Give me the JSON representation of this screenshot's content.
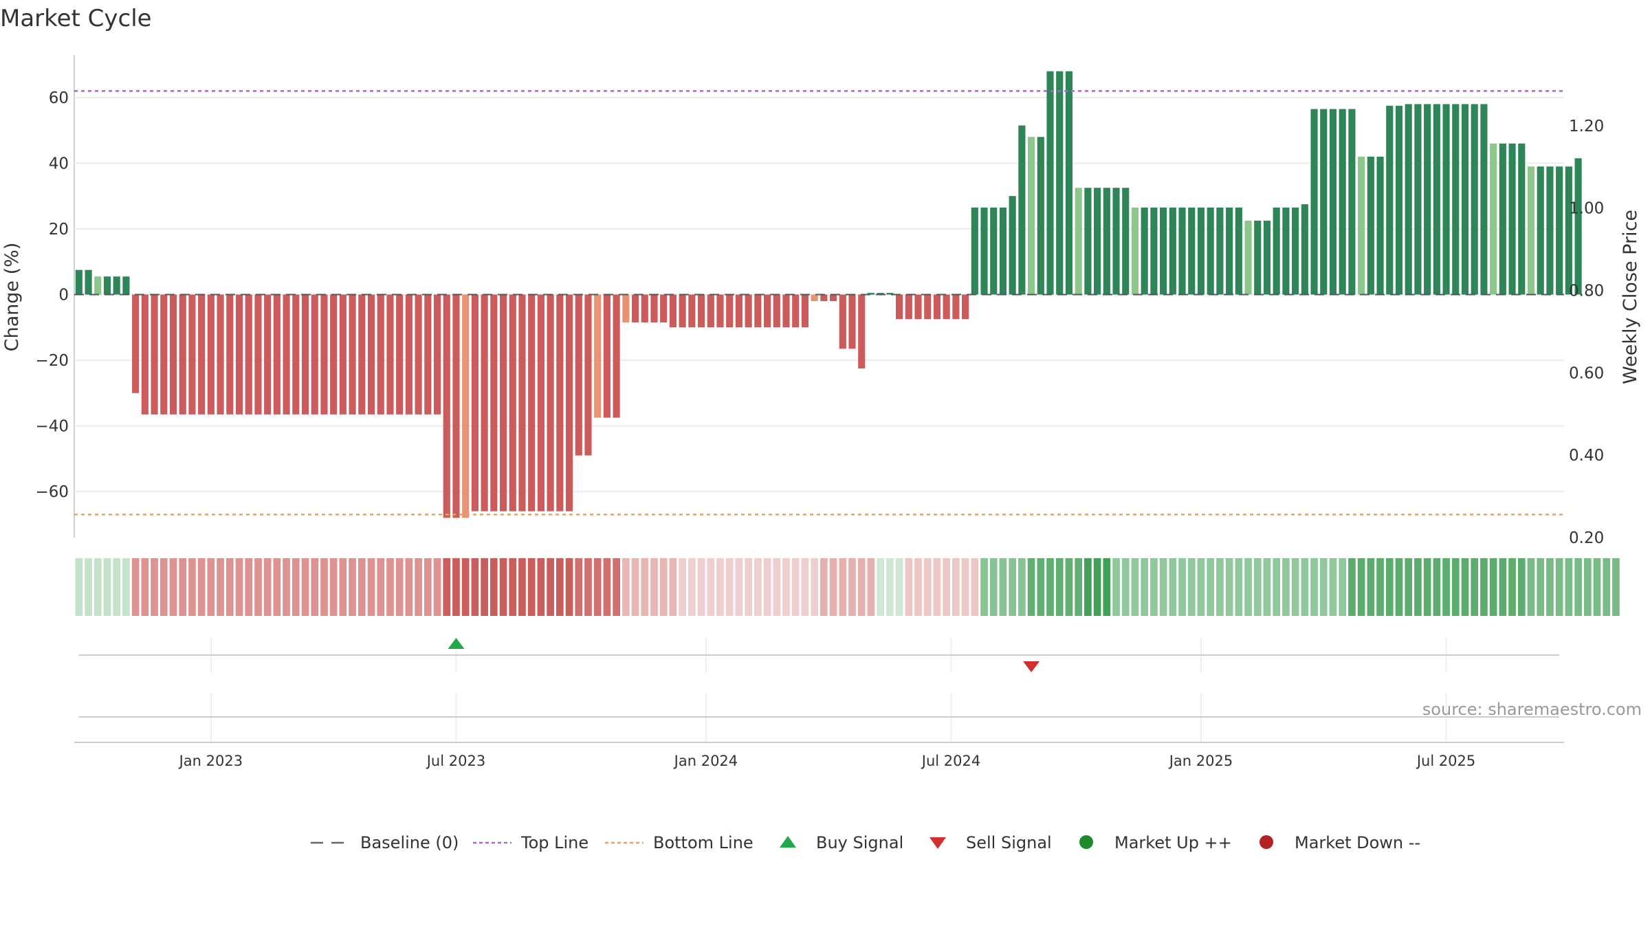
{
  "title": "Market Cycle",
  "source": "source: sharemaestro.com",
  "colors": {
    "up_strong": "#2e8658",
    "up_light": "#8dc68a",
    "down_strong": "#cb5c5b",
    "down_light": "#e89473",
    "top_line": "#a865d8",
    "bottom_line": "#e8a45c",
    "buy": "#22a84a",
    "sell": "#d12e2e",
    "market_up": "#1f8a2a",
    "market_down": "#b22222"
  },
  "chart_data": {
    "type": "bar",
    "ylabel": "Change (%)",
    "y2label": "Weekly Close Price",
    "ylim": [
      -74,
      74
    ],
    "y_ticks": [
      60,
      40,
      20,
      0,
      -20,
      -40,
      -60
    ],
    "y_tick_labels": [
      "60",
      "40",
      "20",
      "0",
      "−20",
      "−40",
      "−60"
    ],
    "y2lim": [
      0.2,
      1.38
    ],
    "y2_ticks": [
      1.2,
      1.0,
      0.8,
      0.6,
      0.4,
      0.2
    ],
    "y2_tick_labels": [
      "1.20",
      "1.00",
      "0.80",
      "0.60",
      "0.40",
      "0.20"
    ],
    "top_line": 62,
    "bottom_line": -67,
    "x_ticks": [
      "Jan 2023",
      "Jul 2023",
      "Jan 2024",
      "Jul 2024",
      "Jan 2025",
      "Jul 2025"
    ],
    "x_tick_weeks": [
      14.5,
      40.5,
      67,
      93,
      119.5,
      145.5
    ],
    "weeks": 158,
    "bars": [
      [
        7.5,
        "s"
      ],
      [
        7.5,
        "s"
      ],
      [
        5.5,
        "l"
      ],
      [
        5.5,
        "s"
      ],
      [
        5.5,
        "s"
      ],
      [
        5.5,
        "s"
      ],
      [
        -30,
        "s"
      ],
      [
        -36.5,
        "s"
      ],
      [
        -36.5,
        "s"
      ],
      [
        -36.5,
        "s"
      ],
      [
        -36.5,
        "s"
      ],
      [
        -36.5,
        "s"
      ],
      [
        -36.5,
        "s"
      ],
      [
        -36.5,
        "s"
      ],
      [
        -36.5,
        "s"
      ],
      [
        -36.5,
        "s"
      ],
      [
        -36.5,
        "s"
      ],
      [
        -36.5,
        "s"
      ],
      [
        -36.5,
        "s"
      ],
      [
        -36.5,
        "s"
      ],
      [
        -36.5,
        "s"
      ],
      [
        -36.5,
        "s"
      ],
      [
        -36.5,
        "s"
      ],
      [
        -36.5,
        "s"
      ],
      [
        -36.5,
        "s"
      ],
      [
        -36.5,
        "s"
      ],
      [
        -36.5,
        "s"
      ],
      [
        -36.5,
        "s"
      ],
      [
        -36.5,
        "s"
      ],
      [
        -36.5,
        "s"
      ],
      [
        -36.5,
        "s"
      ],
      [
        -36.5,
        "s"
      ],
      [
        -36.5,
        "s"
      ],
      [
        -36.5,
        "s"
      ],
      [
        -36.5,
        "s"
      ],
      [
        -36.5,
        "s"
      ],
      [
        -36.5,
        "s"
      ],
      [
        -36.5,
        "s"
      ],
      [
        -36.5,
        "s"
      ],
      [
        -68,
        "s"
      ],
      [
        -68,
        "s"
      ],
      [
        -68,
        "l"
      ],
      [
        -66,
        "s"
      ],
      [
        -66,
        "s"
      ],
      [
        -66,
        "s"
      ],
      [
        -66,
        "s"
      ],
      [
        -66,
        "s"
      ],
      [
        -66,
        "s"
      ],
      [
        -66,
        "s"
      ],
      [
        -66,
        "s"
      ],
      [
        -66,
        "s"
      ],
      [
        -66,
        "s"
      ],
      [
        -66,
        "s"
      ],
      [
        -49,
        "s"
      ],
      [
        -49,
        "s"
      ],
      [
        -37.5,
        "l"
      ],
      [
        -37.5,
        "s"
      ],
      [
        -37.5,
        "s"
      ],
      [
        -8.5,
        "l"
      ],
      [
        -8.5,
        "s"
      ],
      [
        -8.5,
        "s"
      ],
      [
        -8.5,
        "s"
      ],
      [
        -8.5,
        "s"
      ],
      [
        -10,
        "s"
      ],
      [
        -10,
        "s"
      ],
      [
        -10,
        "s"
      ],
      [
        -10,
        "s"
      ],
      [
        -10,
        "s"
      ],
      [
        -10,
        "s"
      ],
      [
        -10,
        "s"
      ],
      [
        -10,
        "s"
      ],
      [
        -10,
        "s"
      ],
      [
        -10,
        "s"
      ],
      [
        -10,
        "s"
      ],
      [
        -10,
        "s"
      ],
      [
        -10,
        "s"
      ],
      [
        -10,
        "s"
      ],
      [
        -10,
        "s"
      ],
      [
        -2,
        "l"
      ],
      [
        -2,
        "s"
      ],
      [
        -2,
        "s"
      ],
      [
        -16.5,
        "s"
      ],
      [
        -16.5,
        "s"
      ],
      [
        -22.5,
        "s"
      ],
      [
        0.5,
        "s"
      ],
      [
        0.5,
        "s"
      ],
      [
        0.5,
        "s"
      ],
      [
        -7.5,
        "s"
      ],
      [
        -7.5,
        "s"
      ],
      [
        -7.5,
        "s"
      ],
      [
        -7.5,
        "s"
      ],
      [
        -7.5,
        "s"
      ],
      [
        -7.5,
        "s"
      ],
      [
        -7.5,
        "s"
      ],
      [
        -7.5,
        "s"
      ],
      [
        26.5,
        "s"
      ],
      [
        26.5,
        "s"
      ],
      [
        26.5,
        "s"
      ],
      [
        26.5,
        "s"
      ],
      [
        30,
        "s"
      ],
      [
        51.5,
        "s"
      ],
      [
        48,
        "l"
      ],
      [
        48,
        "s"
      ],
      [
        68,
        "s"
      ],
      [
        68,
        "s"
      ],
      [
        68,
        "s"
      ],
      [
        32.5,
        "l"
      ],
      [
        32.5,
        "s"
      ],
      [
        32.5,
        "s"
      ],
      [
        32.5,
        "s"
      ],
      [
        32.5,
        "s"
      ],
      [
        32.5,
        "s"
      ],
      [
        26.5,
        "l"
      ],
      [
        26.5,
        "s"
      ],
      [
        26.5,
        "s"
      ],
      [
        26.5,
        "s"
      ],
      [
        26.5,
        "s"
      ],
      [
        26.5,
        "s"
      ],
      [
        26.5,
        "s"
      ],
      [
        26.5,
        "s"
      ],
      [
        26.5,
        "s"
      ],
      [
        26.5,
        "s"
      ],
      [
        26.5,
        "s"
      ],
      [
        26.5,
        "s"
      ],
      [
        22.5,
        "l"
      ],
      [
        22.5,
        "s"
      ],
      [
        22.5,
        "s"
      ],
      [
        26.5,
        "s"
      ],
      [
        26.5,
        "s"
      ],
      [
        26.5,
        "s"
      ],
      [
        27.5,
        "s"
      ],
      [
        56.5,
        "s"
      ],
      [
        56.5,
        "s"
      ],
      [
        56.5,
        "s"
      ],
      [
        56.5,
        "s"
      ],
      [
        56.5,
        "s"
      ],
      [
        42,
        "l"
      ],
      [
        42,
        "s"
      ],
      [
        42,
        "s"
      ],
      [
        57.5,
        "s"
      ],
      [
        57.5,
        "s"
      ],
      [
        58,
        "s"
      ],
      [
        58,
        "s"
      ],
      [
        58,
        "s"
      ],
      [
        58,
        "s"
      ],
      [
        58,
        "s"
      ],
      [
        58,
        "s"
      ],
      [
        58,
        "s"
      ],
      [
        58,
        "s"
      ],
      [
        58,
        "s"
      ],
      [
        46,
        "l"
      ],
      [
        46,
        "s"
      ],
      [
        46,
        "s"
      ],
      [
        46,
        "s"
      ],
      [
        39,
        "l"
      ],
      [
        39,
        "s"
      ],
      [
        39,
        "s"
      ],
      [
        39,
        "s"
      ],
      [
        39,
        "s"
      ],
      [
        41.5,
        "s"
      ]
    ],
    "heat_strip": [
      [
        6,
        "g",
        0.3
      ],
      [
        33,
        "r",
        0.62
      ],
      [
        14,
        "r",
        0.92
      ],
      [
        5,
        "r",
        0.82
      ],
      [
        6,
        "r",
        0.42
      ],
      [
        15,
        "r",
        0.28
      ],
      [
        6,
        "r",
        0.45
      ],
      [
        3,
        "g",
        0.25
      ],
      [
        8,
        "r",
        0.32
      ],
      [
        5,
        "g",
        0.62
      ],
      [
        6,
        "g",
        0.82
      ],
      [
        3,
        "g",
        0.98
      ],
      [
        25,
        "g",
        0.58
      ],
      [
        19,
        "g",
        0.85
      ],
      [
        10,
        "g",
        0.7
      ]
    ],
    "signals": [
      {
        "type": "buy",
        "week": 40
      },
      {
        "type": "sell",
        "week": 101
      }
    ],
    "legend": [
      {
        "label": "Baseline (0)",
        "marker": "dash"
      },
      {
        "label": "Top Line",
        "marker": "dotted-purple"
      },
      {
        "label": "Bottom Line",
        "marker": "dotted-orange"
      },
      {
        "label": "Buy Signal",
        "marker": "triangle-up"
      },
      {
        "label": "Sell Signal",
        "marker": "triangle-down"
      },
      {
        "label": "Market Up ++",
        "marker": "dot-green"
      },
      {
        "label": "Market Down --",
        "marker": "dot-red"
      }
    ]
  }
}
